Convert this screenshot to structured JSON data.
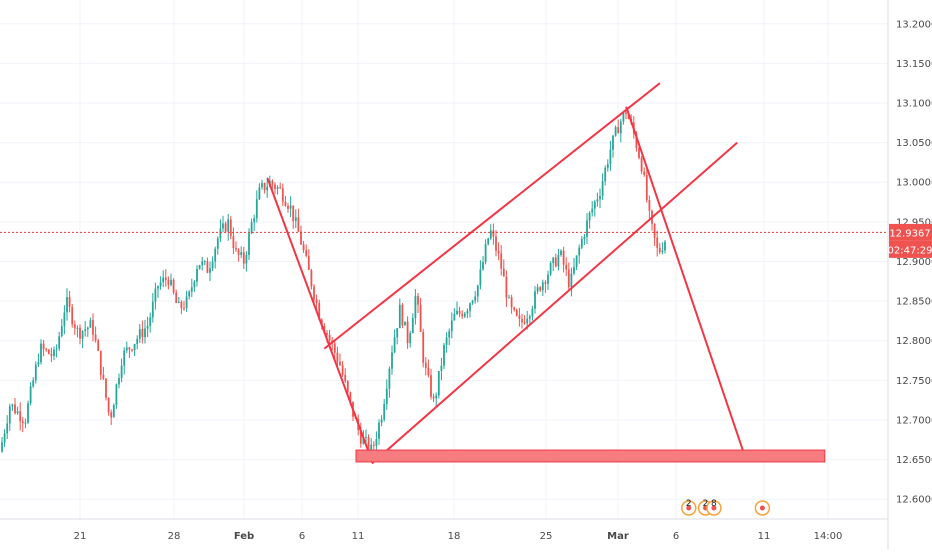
{
  "chart_data": {
    "type": "candlestick",
    "y_axis": {
      "range": [
        12.575,
        13.23
      ],
      "ticks": [
        "13.2000",
        "13.1500",
        "13.1000",
        "13.0500",
        "13.0000",
        "12.9500",
        "12.9000",
        "12.8500",
        "12.8000",
        "12.7500",
        "12.7000",
        "12.6500",
        "12.6000"
      ],
      "tick_values": [
        13.2,
        13.15,
        13.1,
        13.05,
        13.0,
        12.95,
        12.9,
        12.85,
        12.8,
        12.75,
        12.7,
        12.65,
        12.6
      ]
    },
    "x_axis": {
      "ticks": [
        "21",
        "28",
        "Feb",
        "6",
        "11",
        "18",
        "25",
        "Mar",
        "6",
        "11",
        "14:00"
      ],
      "bold_ticks": [
        "Feb",
        "Mar"
      ]
    },
    "current_price": {
      "label": "12.9367",
      "value": 12.9367,
      "countdown": "02:47:29"
    },
    "price_path": [
      {
        "x": 0,
        "y": 12.66
      },
      {
        "x": 10,
        "y": 12.72
      },
      {
        "x": 25,
        "y": 12.7
      },
      {
        "x": 40,
        "y": 12.79
      },
      {
        "x": 55,
        "y": 12.78
      },
      {
        "x": 66,
        "y": 12.85
      },
      {
        "x": 78,
        "y": 12.81
      },
      {
        "x": 92,
        "y": 12.82
      },
      {
        "x": 100,
        "y": 12.77
      },
      {
        "x": 110,
        "y": 12.7
      },
      {
        "x": 122,
        "y": 12.78
      },
      {
        "x": 135,
        "y": 12.8
      },
      {
        "x": 148,
        "y": 12.82
      },
      {
        "x": 158,
        "y": 12.87
      },
      {
        "x": 168,
        "y": 12.88
      },
      {
        "x": 178,
        "y": 12.84
      },
      {
        "x": 188,
        "y": 12.85
      },
      {
        "x": 198,
        "y": 12.9
      },
      {
        "x": 208,
        "y": 12.89
      },
      {
        "x": 218,
        "y": 12.93
      },
      {
        "x": 228,
        "y": 12.95
      },
      {
        "x": 236,
        "y": 12.91
      },
      {
        "x": 244,
        "y": 12.9
      },
      {
        "x": 252,
        "y": 12.95
      },
      {
        "x": 260,
        "y": 12.99
      },
      {
        "x": 270,
        "y": 13.0
      },
      {
        "x": 280,
        "y": 12.99
      },
      {
        "x": 290,
        "y": 12.97
      },
      {
        "x": 300,
        "y": 12.93
      },
      {
        "x": 310,
        "y": 12.88
      },
      {
        "x": 320,
        "y": 12.83
      },
      {
        "x": 330,
        "y": 12.8
      },
      {
        "x": 340,
        "y": 12.77
      },
      {
        "x": 350,
        "y": 12.72
      },
      {
        "x": 360,
        "y": 12.68
      },
      {
        "x": 372,
        "y": 12.66
      },
      {
        "x": 382,
        "y": 12.71
      },
      {
        "x": 392,
        "y": 12.79
      },
      {
        "x": 400,
        "y": 12.84
      },
      {
        "x": 408,
        "y": 12.8
      },
      {
        "x": 416,
        "y": 12.86
      },
      {
        "x": 424,
        "y": 12.77
      },
      {
        "x": 434,
        "y": 12.72
      },
      {
        "x": 444,
        "y": 12.79
      },
      {
        "x": 454,
        "y": 12.83
      },
      {
        "x": 466,
        "y": 12.84
      },
      {
        "x": 478,
        "y": 12.87
      },
      {
        "x": 490,
        "y": 12.94
      },
      {
        "x": 500,
        "y": 12.9
      },
      {
        "x": 510,
        "y": 12.84
      },
      {
        "x": 520,
        "y": 12.82
      },
      {
        "x": 530,
        "y": 12.84
      },
      {
        "x": 540,
        "y": 12.87
      },
      {
        "x": 550,
        "y": 12.89
      },
      {
        "x": 560,
        "y": 12.91
      },
      {
        "x": 570,
        "y": 12.87
      },
      {
        "x": 580,
        "y": 12.92
      },
      {
        "x": 590,
        "y": 12.96
      },
      {
        "x": 600,
        "y": 12.99
      },
      {
        "x": 610,
        "y": 13.04
      },
      {
        "x": 618,
        "y": 13.07
      },
      {
        "x": 626,
        "y": 13.09
      },
      {
        "x": 634,
        "y": 13.06
      },
      {
        "x": 642,
        "y": 13.02
      },
      {
        "x": 650,
        "y": 12.95
      },
      {
        "x": 658,
        "y": 12.91
      },
      {
        "x": 666,
        "y": 12.93
      }
    ],
    "annotations": {
      "channel_upper": [
        [
          12.79,
          0.348
        ],
        [
          13.125,
          0.708
        ]
      ],
      "channel_lower": [
        [
          12.645,
          0.399
        ],
        [
          13.05,
          0.791
        ]
      ],
      "down_trend_1": [
        [
          13.005,
          0.287
        ],
        [
          12.655,
          0.397
        ]
      ],
      "down_trend_2": [
        [
          13.095,
          0.672
        ],
        [
          12.662,
          0.797
        ]
      ],
      "support_zone": [
        12.647,
        12.662
      ],
      "support_zone_x": [
        0.382,
        0.885
      ]
    },
    "events": [
      {
        "label": "2",
        "x": 0.739
      },
      {
        "label": "2",
        "x": 0.757
      },
      {
        "label": "8",
        "x": 0.766
      },
      {
        "label": "",
        "x": 0.818
      }
    ],
    "colors": {
      "up": "#26a69a",
      "down": "#ef5350",
      "drawing": "#f23645",
      "zone_fill": "#f77c80",
      "event_ring": "#f9a23c",
      "event_dot": "#ef5350",
      "axis_text": "#4a4a4a",
      "grid": "#f0f3fa"
    }
  }
}
